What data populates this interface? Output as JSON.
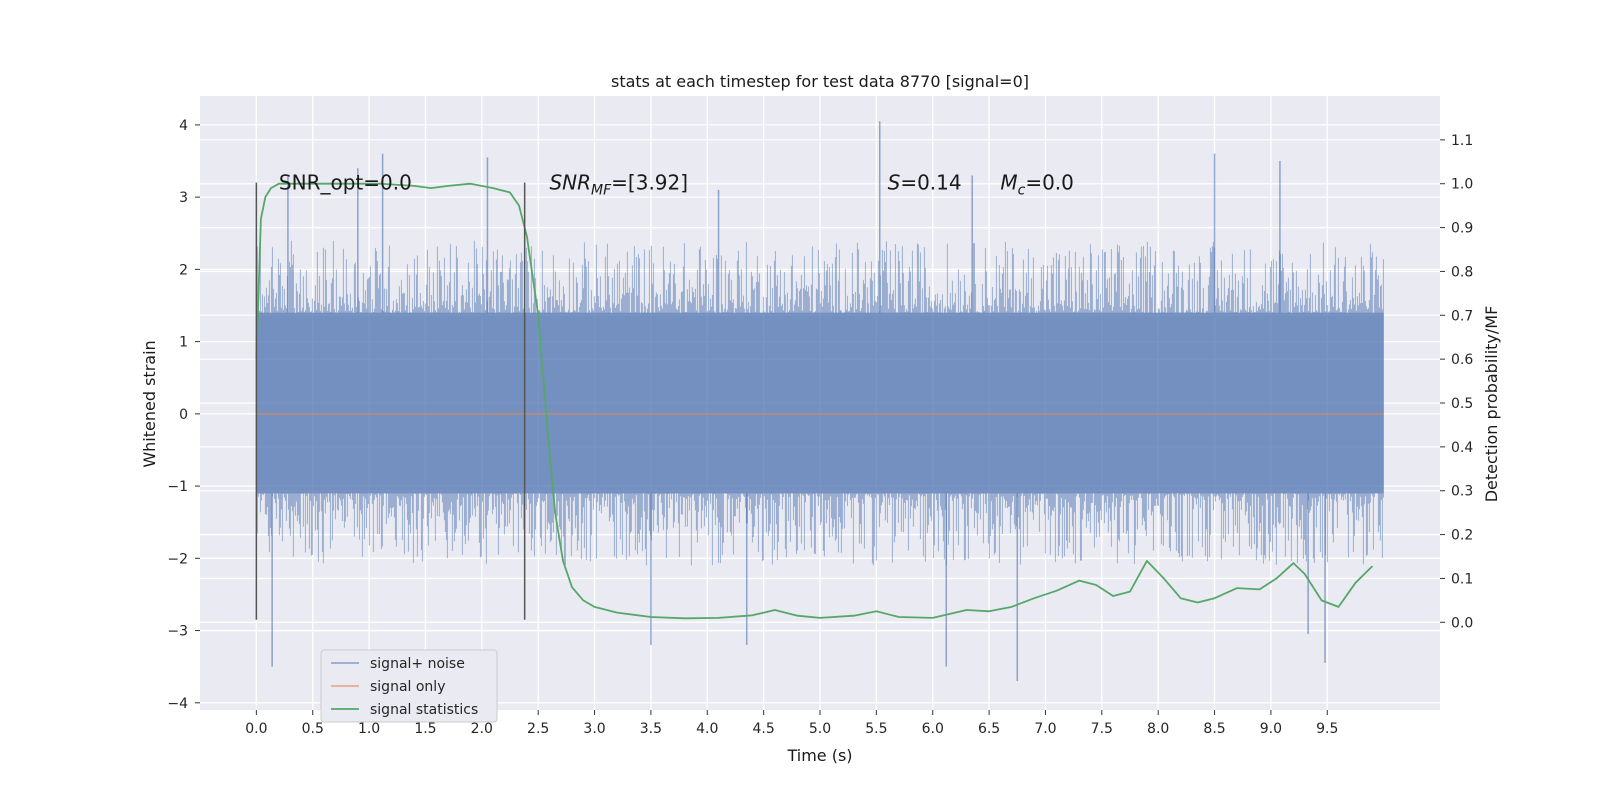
{
  "chart_data": {
    "type": "line",
    "title": "stats at each timestep for test data 8770 [signal=0]",
    "xlabel": "Time (s)",
    "ylabel": "Whitened strain",
    "y2label": "Detection probability/MF",
    "xlim": [
      -0.5,
      10.5
    ],
    "ylim": [
      -4.1,
      4.4
    ],
    "y2lim": [
      -0.2,
      1.2
    ],
    "x_ticks": [
      "0.0",
      "0.5",
      "1.0",
      "1.5",
      "2.0",
      "2.5",
      "3.0",
      "3.5",
      "4.0",
      "4.5",
      "5.0",
      "5.5",
      "6.0",
      "6.5",
      "7.0",
      "7.5",
      "8.0",
      "8.5",
      "9.0",
      "9.5"
    ],
    "x_tick_values": [
      0.0,
      0.5,
      1.0,
      1.5,
      2.0,
      2.5,
      3.0,
      3.5,
      4.0,
      4.5,
      5.0,
      5.5,
      6.0,
      6.5,
      7.0,
      7.5,
      8.0,
      8.5,
      9.0,
      9.5
    ],
    "y_ticks": [
      "4",
      "3",
      "2",
      "1",
      "0",
      "−1",
      "−2",
      "−3",
      "−4"
    ],
    "y_tick_values": [
      4,
      3,
      2,
      1,
      0,
      -1,
      -2,
      -3,
      -4
    ],
    "y2_ticks": [
      "1.1",
      "1.0",
      "0.9",
      "0.8",
      "0.7",
      "0.6",
      "0.5",
      "0.4",
      "0.3",
      "0.2",
      "0.1",
      "0.0"
    ],
    "y2_tick_values": [
      1.1,
      1.0,
      0.9,
      0.8,
      0.7,
      0.6,
      0.5,
      0.4,
      0.3,
      0.2,
      0.1,
      0.0
    ],
    "grid": true,
    "legend_position": "lower-left",
    "legend": [
      "signal+ noise",
      "signal only",
      "signal statistics"
    ],
    "colors": {
      "signal_noise": "#4c72b0",
      "signal_only": "#dd8452",
      "signal_statistics": "#55a868",
      "vline": "#555555",
      "background": "#eaeaf2",
      "grid": "#ffffff"
    },
    "annotations": [
      {
        "x": 0.2,
        "y": 3.2,
        "text": "SNR_opt=0.0"
      },
      {
        "x": 2.6,
        "y": 3.2,
        "label": "SNR",
        "sub": "MF",
        "text": "=[3.92]",
        "italic": true
      },
      {
        "x": 5.6,
        "y": 3.2,
        "label": "S",
        "text": "=0.14",
        "italic": true
      },
      {
        "x": 6.6,
        "y": 3.2,
        "label": "M",
        "sub": "c",
        "text": "=0.0",
        "italic": true
      }
    ],
    "vlines": [
      {
        "x": 0.0,
        "ymin": -2.85,
        "ymax": 3.2
      },
      {
        "x": 2.38,
        "ymin": -2.85,
        "ymax": 3.2
      }
    ],
    "series": [
      {
        "name": "signal+ noise",
        "kind": "noise",
        "x_range": [
          0.0,
          10.0
        ],
        "typical_min": -2.1,
        "typical_max": 2.4,
        "dense_min": -1.1,
        "dense_max": 1.4,
        "spikes": [
          [
            0.28,
            3.3
          ],
          [
            0.9,
            3.4
          ],
          [
            1.12,
            3.6
          ],
          [
            2.05,
            3.55
          ],
          [
            5.53,
            4.05
          ],
          [
            4.1,
            3.1
          ],
          [
            6.35,
            3.3
          ],
          [
            8.5,
            3.6
          ],
          [
            9.08,
            3.5
          ],
          [
            0.14,
            -3.5
          ],
          [
            3.5,
            -3.2
          ],
          [
            6.12,
            -3.5
          ],
          [
            6.75,
            -3.7
          ],
          [
            9.48,
            -3.45
          ],
          [
            9.33,
            -3.05
          ],
          [
            4.35,
            -3.2
          ]
        ]
      },
      {
        "name": "signal only",
        "x": [
          0.0,
          10.0
        ],
        "y": [
          0.0,
          0.0
        ]
      },
      {
        "name": "signal statistics",
        "axis": "right",
        "x": [
          0.0,
          0.04,
          0.08,
          0.13,
          0.2,
          0.3,
          0.5,
          0.8,
          1.1,
          1.4,
          1.55,
          1.7,
          1.9,
          2.1,
          2.25,
          2.33,
          2.4,
          2.5,
          2.58,
          2.65,
          2.72,
          2.8,
          2.9,
          3.0,
          3.2,
          3.5,
          3.8,
          4.1,
          4.4,
          4.6,
          4.8,
          5.0,
          5.3,
          5.5,
          5.7,
          6.0,
          6.3,
          6.5,
          6.7,
          6.9,
          7.1,
          7.3,
          7.45,
          7.6,
          7.75,
          7.9,
          8.05,
          8.2,
          8.35,
          8.5,
          8.7,
          8.9,
          9.05,
          9.2,
          9.3,
          9.45,
          9.6,
          9.75,
          9.9
        ],
        "y": [
          0.6,
          0.92,
          0.97,
          0.99,
          1.0,
          1.0,
          1.0,
          1.0,
          1.0,
          0.995,
          0.99,
          0.995,
          1.0,
          0.99,
          0.98,
          0.95,
          0.88,
          0.7,
          0.45,
          0.25,
          0.14,
          0.08,
          0.05,
          0.035,
          0.022,
          0.012,
          0.009,
          0.01,
          0.016,
          0.028,
          0.015,
          0.01,
          0.015,
          0.025,
          0.012,
          0.01,
          0.028,
          0.025,
          0.035,
          0.055,
          0.072,
          0.095,
          0.085,
          0.06,
          0.07,
          0.14,
          0.1,
          0.055,
          0.045,
          0.055,
          0.078,
          0.075,
          0.1,
          0.135,
          0.11,
          0.05,
          0.035,
          0.09,
          0.128
        ]
      }
    ]
  }
}
